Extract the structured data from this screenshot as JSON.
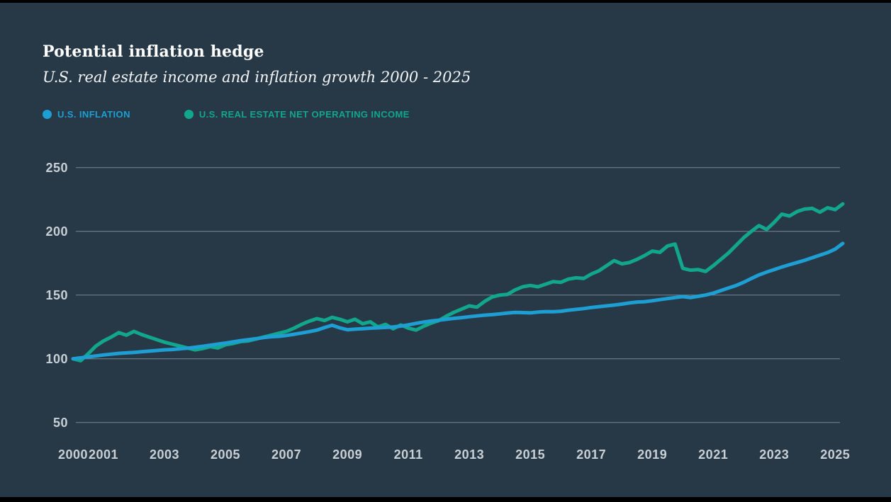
{
  "header": {
    "title": "Potential inflation hedge",
    "subtitle": "U.S. real estate income and inflation growth 2000 - 2025"
  },
  "legend": [
    {
      "label": "U.S. INFLATION",
      "color": "#1d9fd4"
    },
    {
      "label": "U.S. REAL ESTATE NET OPERATING INCOME",
      "color": "#12a78c"
    }
  ],
  "colors": {
    "background": "#273847",
    "inflation_line": "#1d9fd4",
    "noi_line": "#12a78c",
    "grid": "#cdd7de",
    "tick_text": "#c9d0d5"
  },
  "chart_data": {
    "type": "line",
    "title": "Potential inflation hedge",
    "subtitle": "U.S. real estate income and inflation growth 2000 - 2025",
    "x_start": 2000.0,
    "x_step": 0.25,
    "x_end": 2025.25,
    "x_ticks": [
      2000,
      2001,
      2003,
      2005,
      2007,
      2009,
      2011,
      2013,
      2015,
      2017,
      2019,
      2021,
      2023,
      2025
    ],
    "y_ticks": [
      50,
      100,
      150,
      200,
      250
    ],
    "ylim": [
      50,
      250
    ],
    "grid": "horizontal-only",
    "legend_position": "top-left",
    "index_base": "2000 = 100",
    "series": [
      {
        "name": "U.S. INFLATION",
        "color": "#1d9fd4",
        "values": [
          100.0,
          100.8,
          101.5,
          102.2,
          103.0,
          103.6,
          104.2,
          104.6,
          105.0,
          105.5,
          106.0,
          106.5,
          107.0,
          107.3,
          107.8,
          108.3,
          109.0,
          109.8,
          110.6,
          111.5,
          112.3,
          113.2,
          114.2,
          115.0,
          115.8,
          116.6,
          117.3,
          117.6,
          118.3,
          119.2,
          120.2,
          121.3,
          122.5,
          124.5,
          126.3,
          124.3,
          122.8,
          123.2,
          123.6,
          124.0,
          124.3,
          124.6,
          125.0,
          125.6,
          126.6,
          127.8,
          128.8,
          129.6,
          130.3,
          131.0,
          131.7,
          132.3,
          133.0,
          133.6,
          134.2,
          134.6,
          135.2,
          135.9,
          136.4,
          136.2,
          136.0,
          136.6,
          137.0,
          136.9,
          137.3,
          138.1,
          138.7,
          139.4,
          140.2,
          140.9,
          141.5,
          142.1,
          142.9,
          143.8,
          144.5,
          144.8,
          145.5,
          146.4,
          147.2,
          148.0,
          148.8,
          148.0,
          149.0,
          150.0,
          151.5,
          153.5,
          155.5,
          157.5,
          160.0,
          163.0,
          165.8,
          168.0,
          170.0,
          172.0,
          173.8,
          175.5,
          177.3,
          179.3,
          181.3,
          183.3,
          186.0,
          190.5
        ]
      },
      {
        "name": "U.S. REAL ESTATE NET OPERATING INCOME",
        "color": "#12a78c",
        "values": [
          100.0,
          98.5,
          104.0,
          110.0,
          114.0,
          117.0,
          120.5,
          118.5,
          121.5,
          119.0,
          117.0,
          115.0,
          113.0,
          111.5,
          110.0,
          108.5,
          107.0,
          108.0,
          109.5,
          108.5,
          111.0,
          112.0,
          113.5,
          114.0,
          115.5,
          117.0,
          118.5,
          120.0,
          121.5,
          124.0,
          127.0,
          129.5,
          131.5,
          130.0,
          132.5,
          131.0,
          129.0,
          131.0,
          127.5,
          129.0,
          125.0,
          127.0,
          123.5,
          126.5,
          124.0,
          122.5,
          125.5,
          128.0,
          130.0,
          133.5,
          136.5,
          139.0,
          141.5,
          140.5,
          145.0,
          148.5,
          150.0,
          150.5,
          154.0,
          156.5,
          157.5,
          156.5,
          158.5,
          160.5,
          160.0,
          162.5,
          163.5,
          163.0,
          166.5,
          169.0,
          173.0,
          177.0,
          174.5,
          175.5,
          178.0,
          181.0,
          184.5,
          183.5,
          188.5,
          190.0,
          171.0,
          169.5,
          170.0,
          168.5,
          173.0,
          178.0,
          183.0,
          189.0,
          195.0,
          200.0,
          204.5,
          201.5,
          207.0,
          213.5,
          212.0,
          215.5,
          217.5,
          218.0,
          215.0,
          218.5,
          217.0,
          221.5
        ]
      }
    ]
  }
}
